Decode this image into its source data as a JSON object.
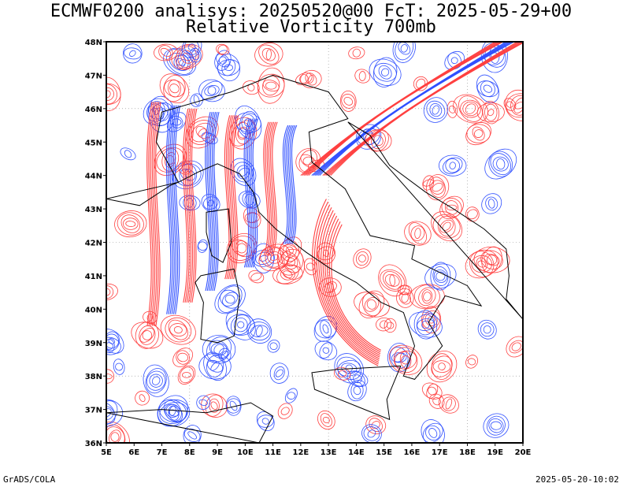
{
  "header": {
    "title_line1": "ECMWF0200 analisys: 20250520@00 FcT: 2025-05-29+00",
    "title_line2": "Relative Vorticity 700mb"
  },
  "footer": {
    "left": "GrADS/COLA",
    "right": "2025-05-20-10:02"
  },
  "map": {
    "lon_labels": [
      "5E",
      "6E",
      "7E",
      "8E",
      "9E",
      "10E",
      "11E",
      "12E",
      "13E",
      "14E",
      "15E",
      "16E",
      "17E",
      "18E",
      "19E",
      "20E"
    ],
    "lat_labels": [
      "48N",
      "47N",
      "46N",
      "45N",
      "44N",
      "43N",
      "42N",
      "41N",
      "40N",
      "39N",
      "38N",
      "37N",
      "36N"
    ],
    "lon_range": [
      5,
      20
    ],
    "lat_range": [
      36,
      48
    ],
    "colors": {
      "positive_contours": "#ff4040",
      "negative_contours": "#3050ff",
      "coastline": "#000000",
      "frame": "#000000",
      "grid": "#888888"
    }
  }
}
